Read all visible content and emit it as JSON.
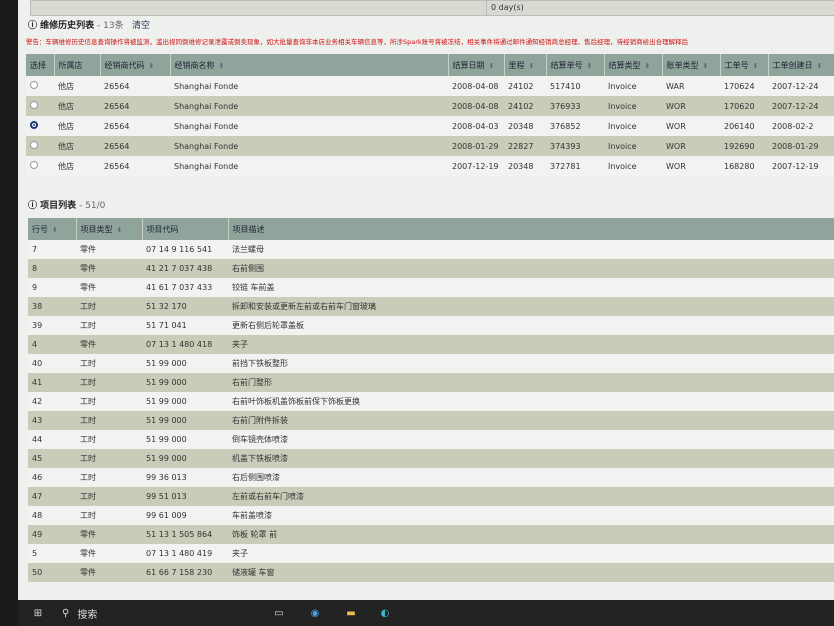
{
  "top": {
    "right_value": "0 day(s)"
  },
  "history": {
    "title": "维修历史列表",
    "count": " - 13条",
    "clear_label": "清空",
    "warning": "警告：车辆维修历史信息查询操作将被监测，滥出视同倒维修记录泄露或倒卖现象，如大批量查询非本店业务相关车辆信息等，所涉Spark账号将被冻结，相关事件将通过邮件通知经销商总经理、售后经理，待经销商给出合理解释后",
    "columns": [
      "选择",
      "所属店",
      "经销商代码",
      "经销商名称",
      "结算日期",
      "里程",
      "结算单号",
      "结算类型",
      "账单类型",
      "工单号",
      "工单创建日"
    ],
    "rows": [
      {
        "selected": false,
        "store": "他店",
        "code": "26564",
        "name": "Shanghai Fonde",
        "date": "2008-04-08",
        "mileage": "24102",
        "settle_no": "517410",
        "settle_type": "Invoice",
        "bill_type": "WAR",
        "wo": "170624",
        "wo_date": "2007-12-24"
      },
      {
        "selected": false,
        "store": "他店",
        "code": "26564",
        "name": "Shanghai Fonde",
        "date": "2008-04-08",
        "mileage": "24102",
        "settle_no": "376933",
        "settle_type": "Invoice",
        "bill_type": "WOR",
        "wo": "170620",
        "wo_date": "2007-12-24"
      },
      {
        "selected": true,
        "store": "他店",
        "code": "26564",
        "name": "Shanghai Fonde",
        "date": "2008-04-03",
        "mileage": "20348",
        "settle_no": "376852",
        "settle_type": "Invoice",
        "bill_type": "WOR",
        "wo": "206140",
        "wo_date": "2008-02-2"
      },
      {
        "selected": false,
        "store": "他店",
        "code": "26564",
        "name": "Shanghai Fonde",
        "date": "2008-01-29",
        "mileage": "22827",
        "settle_no": "374393",
        "settle_type": "Invoice",
        "bill_type": "WOR",
        "wo": "192690",
        "wo_date": "2008-01-29"
      },
      {
        "selected": false,
        "store": "他店",
        "code": "26564",
        "name": "Shanghai Fonde",
        "date": "2007-12-19",
        "mileage": "20348",
        "settle_no": "372781",
        "settle_type": "Invoice",
        "bill_type": "WOR",
        "wo": "168280",
        "wo_date": "2007-12-19"
      }
    ]
  },
  "items": {
    "title": "项目列表",
    "count": " - 51/0",
    "columns": [
      "行号",
      "项目类型",
      "项目代码",
      "项目描述"
    ],
    "rows": [
      [
        "7",
        "零件",
        "07 14 9 116 541",
        "法兰螺母"
      ],
      [
        "8",
        "零件",
        "41 21 7 037 438",
        "右前侧围"
      ],
      [
        "9",
        "零件",
        "41 61 7 037 433",
        "铰链 车前盖"
      ],
      [
        "38",
        "工时",
        "51 32 170",
        "拆卸和安装或更新左前或右前车门窗玻璃"
      ],
      [
        "39",
        "工时",
        "51 71 041",
        "更新右侧后轮罩盖板"
      ],
      [
        "4",
        "零件",
        "07 13 1 480 418",
        "夹子"
      ],
      [
        "40",
        "工时",
        "51 99 000",
        "前挡下铁板整形"
      ],
      [
        "41",
        "工时",
        "51 99 000",
        "右前门整形"
      ],
      [
        "42",
        "工时",
        "51 99 000",
        "右前叶饰板机盖饰板前保下饰板更换"
      ],
      [
        "43",
        "工时",
        "51 99 000",
        "右前门附件拆装"
      ],
      [
        "44",
        "工时",
        "51 99 000",
        "倒车镜壳体喷漆"
      ],
      [
        "45",
        "工时",
        "51 99 000",
        "机盖下铁板喷漆"
      ],
      [
        "46",
        "工时",
        "99 36 013",
        "右后侧围喷漆"
      ],
      [
        "47",
        "工时",
        "99 51 013",
        "左前或右前车门喷漆"
      ],
      [
        "48",
        "工时",
        "99 61 009",
        "车前盖喷漆"
      ],
      [
        "49",
        "零件",
        "51 13 1 505 864",
        "饰板 轮罩 前"
      ],
      [
        "5",
        "零件",
        "07 13 1 480 419",
        "夹子"
      ],
      [
        "50",
        "零件",
        "61 66 7 158 230",
        "储液罐 车窗"
      ]
    ]
  },
  "taskbar": {
    "search_label": "搜索"
  }
}
